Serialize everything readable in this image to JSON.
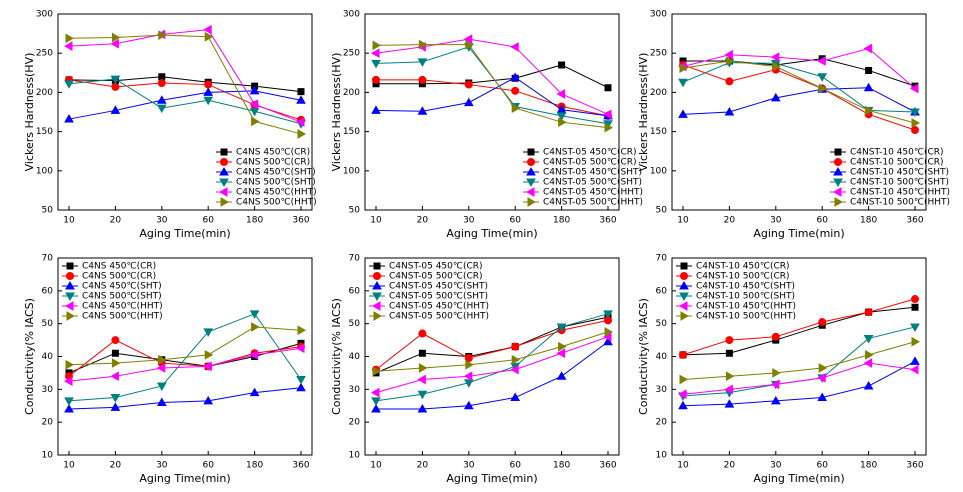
{
  "chart_data": [
    {
      "type": "line",
      "x_label": "Aging Time(min)",
      "y_label": "Vickers Hardness(HV)",
      "categories": [
        "10",
        "20",
        "30",
        "60",
        "180",
        "360"
      ],
      "ylim": [
        50,
        300
      ],
      "yticks": [
        50,
        100,
        150,
        200,
        250,
        300
      ],
      "legend": "lower right",
      "series": [
        {
          "name": "C4NS 450℃(CR)",
          "color": "#000000",
          "marker": "square",
          "values": [
            216,
            215,
            220,
            213,
            208,
            201
          ]
        },
        {
          "name": "C4NS 500℃(CR)",
          "color": "#ff0000",
          "marker": "circle",
          "values": [
            216,
            207,
            212,
            210,
            184,
            165
          ]
        },
        {
          "name": "C4NS 450℃(SHT)",
          "color": "#0000ff",
          "marker": "triangle-up",
          "values": [
            166,
            177,
            190,
            200,
            202,
            190
          ]
        },
        {
          "name": "C4NS 500℃(SHT)",
          "color": "#008080",
          "marker": "triangle-down",
          "values": [
            211,
            217,
            180,
            190,
            176,
            160
          ]
        },
        {
          "name": "C4NS 450℃(HHT)",
          "color": "#ff00ff",
          "marker": "triangle-left",
          "values": [
            259,
            262,
            274,
            280,
            185,
            162
          ]
        },
        {
          "name": "C4NS 500℃(HHT)",
          "color": "#808000",
          "marker": "triangle-right",
          "values": [
            269,
            270,
            273,
            271,
            163,
            147
          ]
        }
      ]
    },
    {
      "type": "line",
      "x_label": "Aging Time(min)",
      "y_label": "Vickers Hardness(HV)",
      "categories": [
        "10",
        "20",
        "30",
        "60",
        "180",
        "360"
      ],
      "ylim": [
        50,
        300
      ],
      "yticks": [
        50,
        100,
        150,
        200,
        250,
        300
      ],
      "legend": "lower right",
      "series": [
        {
          "name": "C4NST-05 450℃(CR)",
          "color": "#000000",
          "marker": "square",
          "values": [
            211,
            211,
            212,
            218,
            235,
            206
          ]
        },
        {
          "name": "C4NST-05 500℃(CR)",
          "color": "#ff0000",
          "marker": "circle",
          "values": [
            216,
            216,
            210,
            202,
            182,
            170
          ]
        },
        {
          "name": "C4NST-05 450℃(SHT)",
          "color": "#0000ff",
          "marker": "triangle-up",
          "values": [
            177,
            176,
            187,
            219,
            178,
            170
          ]
        },
        {
          "name": "C4NST-05 500℃(SHT)",
          "color": "#008080",
          "marker": "triangle-down",
          "values": [
            237,
            239,
            258,
            182,
            170,
            160
          ]
        },
        {
          "name": "C4NST-05 450℃(HHT)",
          "color": "#ff00ff",
          "marker": "triangle-left",
          "values": [
            250,
            258,
            268,
            258,
            198,
            172
          ]
        },
        {
          "name": "C4NST-05 500℃(HHT)",
          "color": "#808000",
          "marker": "triangle-right",
          "values": [
            260,
            261,
            261,
            180,
            162,
            155
          ]
        }
      ]
    },
    {
      "type": "line",
      "x_label": "Aging Time(min)",
      "y_label": "Vickers Hardness(HV)",
      "categories": [
        "10",
        "20",
        "30",
        "60",
        "180",
        "360"
      ],
      "ylim": [
        50,
        300
      ],
      "yticks": [
        50,
        100,
        150,
        200,
        250,
        300
      ],
      "legend": "lower right",
      "series": [
        {
          "name": "C4NST-10 450℃(CR)",
          "color": "#000000",
          "marker": "square",
          "values": [
            240,
            240,
            235,
            243,
            228,
            208
          ]
        },
        {
          "name": "C4NST-10 500℃(CR)",
          "color": "#ff0000",
          "marker": "circle",
          "values": [
            235,
            214,
            229,
            205,
            172,
            152
          ]
        },
        {
          "name": "C4NST-10 450℃(SHT)",
          "color": "#0000ff",
          "marker": "triangle-up",
          "values": [
            172,
            175,
            193,
            204,
            206,
            175
          ]
        },
        {
          "name": "C4NST-10 500℃(SHT)",
          "color": "#008080",
          "marker": "triangle-down",
          "values": [
            213,
            238,
            237,
            220,
            177,
            175
          ]
        },
        {
          "name": "C4NST-10 450℃(HHT)",
          "color": "#ff00ff",
          "marker": "triangle-left",
          "values": [
            233,
            248,
            245,
            240,
            256,
            205
          ]
        },
        {
          "name": "C4NST-10 500℃(HHT)",
          "color": "#808000",
          "marker": "triangle-right",
          "values": [
            231,
            240,
            233,
            205,
            177,
            161
          ]
        }
      ]
    },
    {
      "type": "line",
      "x_label": "Aging Time(min)",
      "y_label": "Conductivity(% IACS)",
      "categories": [
        "10",
        "20",
        "30",
        "60",
        "180",
        "360"
      ],
      "ylim": [
        10,
        70
      ],
      "yticks": [
        10,
        20,
        30,
        40,
        50,
        60,
        70
      ],
      "legend": "upper left",
      "series": [
        {
          "name": "C4NS 450℃(CR)",
          "color": "#000000",
          "marker": "square",
          "values": [
            35,
            41,
            39,
            37,
            40,
            44
          ]
        },
        {
          "name": "C4NS 500℃(CR)",
          "color": "#ff0000",
          "marker": "circle",
          "values": [
            34,
            45,
            38,
            37,
            41,
            43
          ]
        },
        {
          "name": "C4NS 450℃(SHT)",
          "color": "#0000ff",
          "marker": "triangle-up",
          "values": [
            24,
            24.5,
            26,
            26.5,
            29,
            30.5
          ]
        },
        {
          "name": "C4NS 500℃(SHT)",
          "color": "#008080",
          "marker": "triangle-down",
          "values": [
            26.5,
            27.5,
            31,
            47.5,
            53,
            33
          ]
        },
        {
          "name": "C4NS 450℃(HHT)",
          "color": "#ff00ff",
          "marker": "triangle-left",
          "values": [
            32.5,
            34,
            36.5,
            37,
            40.5,
            42.5
          ]
        },
        {
          "name": "C4NS 500℃(HHT)",
          "color": "#808000",
          "marker": "triangle-right",
          "values": [
            37.5,
            38,
            39,
            40.5,
            49,
            48
          ]
        }
      ]
    },
    {
      "type": "line",
      "x_label": "Aging Time(min)",
      "y_label": "Conductivity(% IACS)",
      "categories": [
        "10",
        "20",
        "30",
        "60",
        "180",
        "360"
      ],
      "ylim": [
        10,
        70
      ],
      "yticks": [
        10,
        20,
        30,
        40,
        50,
        60,
        70
      ],
      "legend": "upper left",
      "series": [
        {
          "name": "C4NST-05 450℃(CR)",
          "color": "#000000",
          "marker": "square",
          "values": [
            35,
            41,
            40,
            43,
            49,
            52
          ]
        },
        {
          "name": "C4NST-05 500℃(CR)",
          "color": "#ff0000",
          "marker": "circle",
          "values": [
            36,
            47,
            39.5,
            43,
            48,
            51
          ]
        },
        {
          "name": "C4NST-05 450℃(SHT)",
          "color": "#0000ff",
          "marker": "triangle-up",
          "values": [
            24,
            24,
            25,
            27.5,
            34,
            44.5
          ]
        },
        {
          "name": "C4NST-05 500℃(SHT)",
          "color": "#008080",
          "marker": "triangle-down",
          "values": [
            26.5,
            28.5,
            32,
            37,
            49,
            53
          ]
        },
        {
          "name": "C4NST-05 450℃(HHT)",
          "color": "#ff00ff",
          "marker": "triangle-left",
          "values": [
            29,
            33,
            34,
            36,
            41,
            46
          ]
        },
        {
          "name": "C4NST-05 500℃(HHT)",
          "color": "#808000",
          "marker": "triangle-right",
          "values": [
            35.5,
            36.5,
            37.5,
            39,
            43,
            47.5
          ]
        }
      ]
    },
    {
      "type": "line",
      "x_label": "Aging Time(min)",
      "y_label": "Conductivity(% IACS)",
      "categories": [
        "10",
        "20",
        "30",
        "60",
        "180",
        "360"
      ],
      "ylim": [
        10,
        70
      ],
      "yticks": [
        10,
        20,
        30,
        40,
        50,
        60,
        70
      ],
      "legend": "upper left",
      "series": [
        {
          "name": "C4NST-10 450℃(CR)",
          "color": "#000000",
          "marker": "square",
          "values": [
            40.5,
            41,
            45,
            49.5,
            53.5,
            55
          ]
        },
        {
          "name": "C4NST-10 500℃(CR)",
          "color": "#ff0000",
          "marker": "circle",
          "values": [
            40.5,
            45,
            46,
            50.5,
            53.5,
            57.5
          ]
        },
        {
          "name": "C4NST-10 450℃(SHT)",
          "color": "#0000ff",
          "marker": "triangle-up",
          "values": [
            25,
            25.5,
            26.5,
            27.5,
            31,
            38.5
          ]
        },
        {
          "name": "C4NST-10 500℃(SHT)",
          "color": "#008080",
          "marker": "triangle-down",
          "values": [
            28,
            29,
            31.5,
            33.5,
            45.5,
            49
          ]
        },
        {
          "name": "C4NST-10 450℃(HHT)",
          "color": "#ff00ff",
          "marker": "triangle-left",
          "values": [
            28.5,
            30,
            31.5,
            33.5,
            38,
            36
          ]
        },
        {
          "name": "C4NST-10 500℃(HHT)",
          "color": "#808000",
          "marker": "triangle-right",
          "values": [
            33,
            34,
            35,
            36.5,
            40.5,
            44.5
          ]
        }
      ]
    }
  ]
}
